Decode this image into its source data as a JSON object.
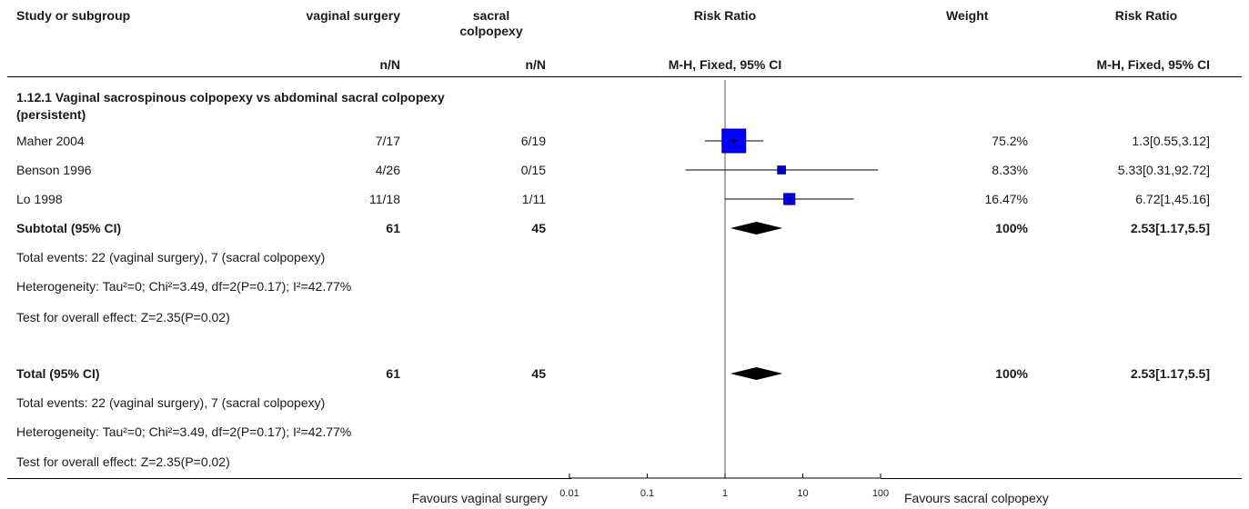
{
  "header": {
    "study": "Study or subgroup",
    "exp": "vaginal surgery",
    "ctl_line1": "sacral",
    "ctl_line2": "colpopexy",
    "plot": "Risk Ratio",
    "weight": "Weight",
    "ratio": "Risk Ratio",
    "exp_sub": "n/N",
    "ctl_sub": "n/N",
    "plot_sub": "M-H, Fixed, 95% CI",
    "ratio_sub": "M-H, Fixed, 95% CI"
  },
  "subgroup": {
    "title_line1": "1.12.1 Vaginal sacrospinous colpopexy vs abdominal sacral colpopexy",
    "title_line2": "(persistent)",
    "studies": [
      {
        "name": "Maher 2004",
        "exp": "7/17",
        "ctl": "6/19",
        "weight": "75.2%",
        "ci": "1.3[0.55,3.12]"
      },
      {
        "name": "Benson 1996",
        "exp": "4/26",
        "ctl": "0/15",
        "weight": "8.33%",
        "ci": "5.33[0.31,92.72]"
      },
      {
        "name": "Lo 1998",
        "exp": "11/18",
        "ctl": "1/11",
        "weight": "16.47%",
        "ci": "6.72[1,45.16]"
      }
    ],
    "subtotal": {
      "label": "Subtotal (95% CI)",
      "exp": "61",
      "ctl": "45",
      "weight": "100%",
      "ci": "2.53[1.17,5.5]"
    },
    "events": "Total events: 22 (vaginal surgery), 7 (sacral colpopexy)",
    "heterogeneity": "Heterogeneity: Tau²=0; Chi²=3.49, df=2(P=0.17); I²=42.77%",
    "overall": "Test for overall effect: Z=2.35(P=0.02)"
  },
  "total": {
    "label": "Total (95% CI)",
    "exp": "61",
    "ctl": "45",
    "weight": "100%",
    "ci": "2.53[1.17,5.5]",
    "events": "Total events: 22 (vaginal surgery), 7 (sacral colpopexy)",
    "heterogeneity": "Heterogeneity: Tau²=0; Chi²=3.49, df=2(P=0.17); I²=42.77%",
    "overall": "Test for overall effect: Z=2.35(P=0.02)"
  },
  "footer": {
    "favours_left": "Favours vaginal surgery",
    "favours_right": "Favours sacral colpopexy"
  },
  "colors": {
    "study_marker": "#0000ff",
    "study_marker_border": "#000080",
    "diamond": "#000000"
  },
  "chart_data": {
    "type": "forest",
    "scale": "log",
    "xlim": [
      0.01,
      100
    ],
    "ticks": [
      "0.01",
      "0.1",
      "1",
      "10",
      "100"
    ],
    "tick_values": [
      0.01,
      0.1,
      1,
      10,
      100
    ],
    "xlabel": "M-H, Fixed, 95% CI",
    "studies": [
      {
        "name": "Maher 2004",
        "rr": 1.3,
        "lower": 0.55,
        "upper": 3.12,
        "weight": 75.2
      },
      {
        "name": "Benson 1996",
        "rr": 5.33,
        "lower": 0.31,
        "upper": 92.72,
        "weight": 8.33
      },
      {
        "name": "Lo 1998",
        "rr": 6.72,
        "lower": 1,
        "upper": 45.16,
        "weight": 16.47
      }
    ],
    "pooled": [
      {
        "name": "Subtotal (95% CI)",
        "rr": 2.53,
        "lower": 1.17,
        "upper": 5.5
      },
      {
        "name": "Total (95% CI)",
        "rr": 2.53,
        "lower": 1.17,
        "upper": 5.5
      }
    ]
  }
}
